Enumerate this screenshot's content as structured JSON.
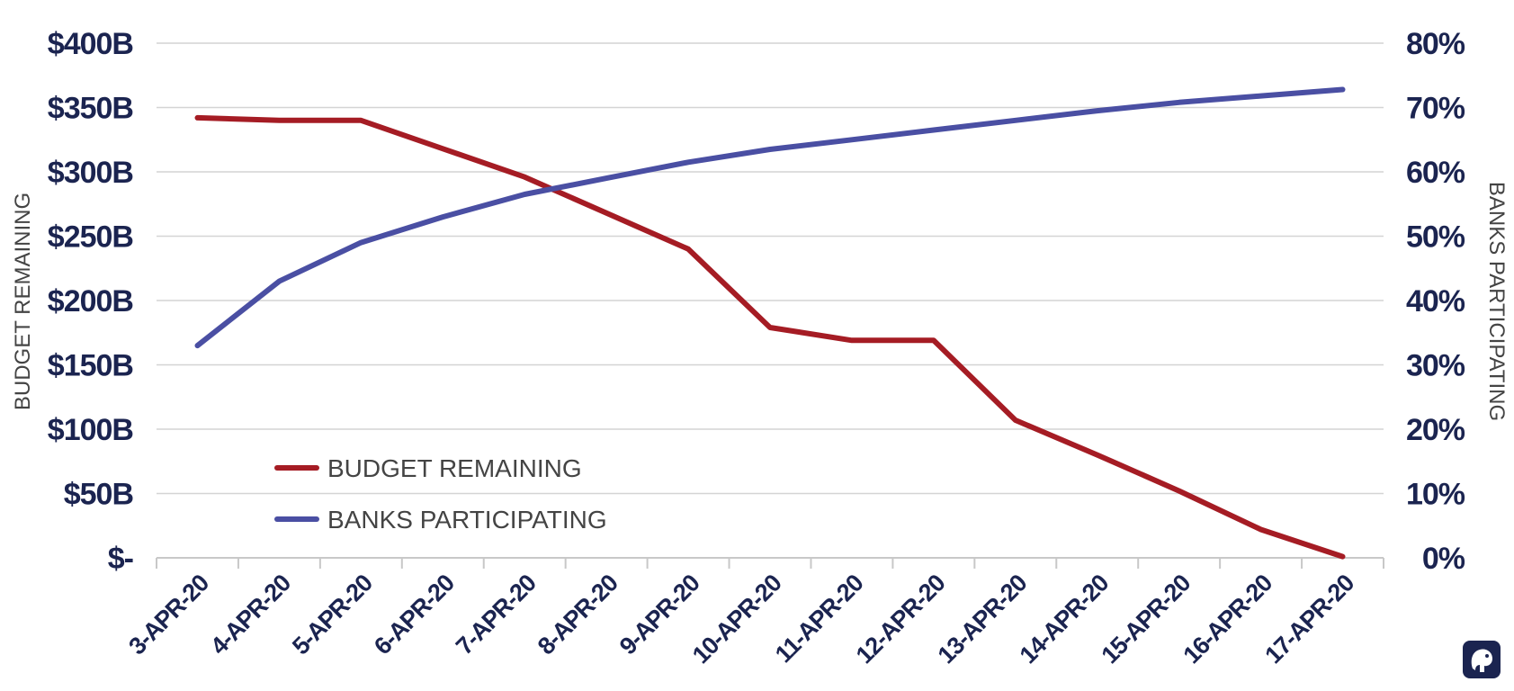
{
  "chart_data": {
    "type": "line",
    "title": "",
    "categories": [
      "3-APR-20",
      "4-APR-20",
      "5-APR-20",
      "6-APR-20",
      "7-APR-20",
      "8-APR-20",
      "9-APR-20",
      "10-APR-20",
      "11-APR-20",
      "12-APR-20",
      "13-APR-20",
      "14-APR-20",
      "15-APR-20",
      "16-APR-20",
      "17-APR-20"
    ],
    "series": [
      {
        "name": "BUDGET REMAINING",
        "axis": "left",
        "color": "#a51c24",
        "values": [
          342,
          340,
          340,
          318,
          296,
          268,
          240,
          179,
          169,
          169,
          107,
          80,
          52,
          22,
          1
        ]
      },
      {
        "name": "BANKS PARTICIPATING",
        "axis": "right",
        "color": "#4a4fa3",
        "values": [
          33,
          43,
          49,
          53,
          56.5,
          59,
          61.5,
          63.5,
          65,
          66.5,
          68,
          69.5,
          70.8,
          71.8,
          72.8
        ]
      }
    ],
    "ylabel": "BUDGET REMAINING",
    "ylim": [
      0,
      400
    ],
    "yticks": [
      0,
      50,
      100,
      150,
      200,
      250,
      300,
      350,
      400
    ],
    "ytick_labels": [
      "$-",
      "$50B",
      "$100B",
      "$150B",
      "$200B",
      "$250B",
      "$300B",
      "$350B",
      "$400B"
    ],
    "y2label": "BANKS PARTICIPATING",
    "y2lim": [
      0,
      80
    ],
    "y2ticks": [
      0,
      10,
      20,
      30,
      40,
      50,
      60,
      70,
      80
    ],
    "y2tick_labels": [
      "0%",
      "10%",
      "20%",
      "30%",
      "40%",
      "50%",
      "60%",
      "70%",
      "80%"
    ],
    "grid": true,
    "legend": "lower-left",
    "tick_color": "#1b2450",
    "grid_color": "#d4d4d4"
  },
  "logo": {
    "icon": "elephant-logo-icon",
    "color": "#1b2450"
  }
}
